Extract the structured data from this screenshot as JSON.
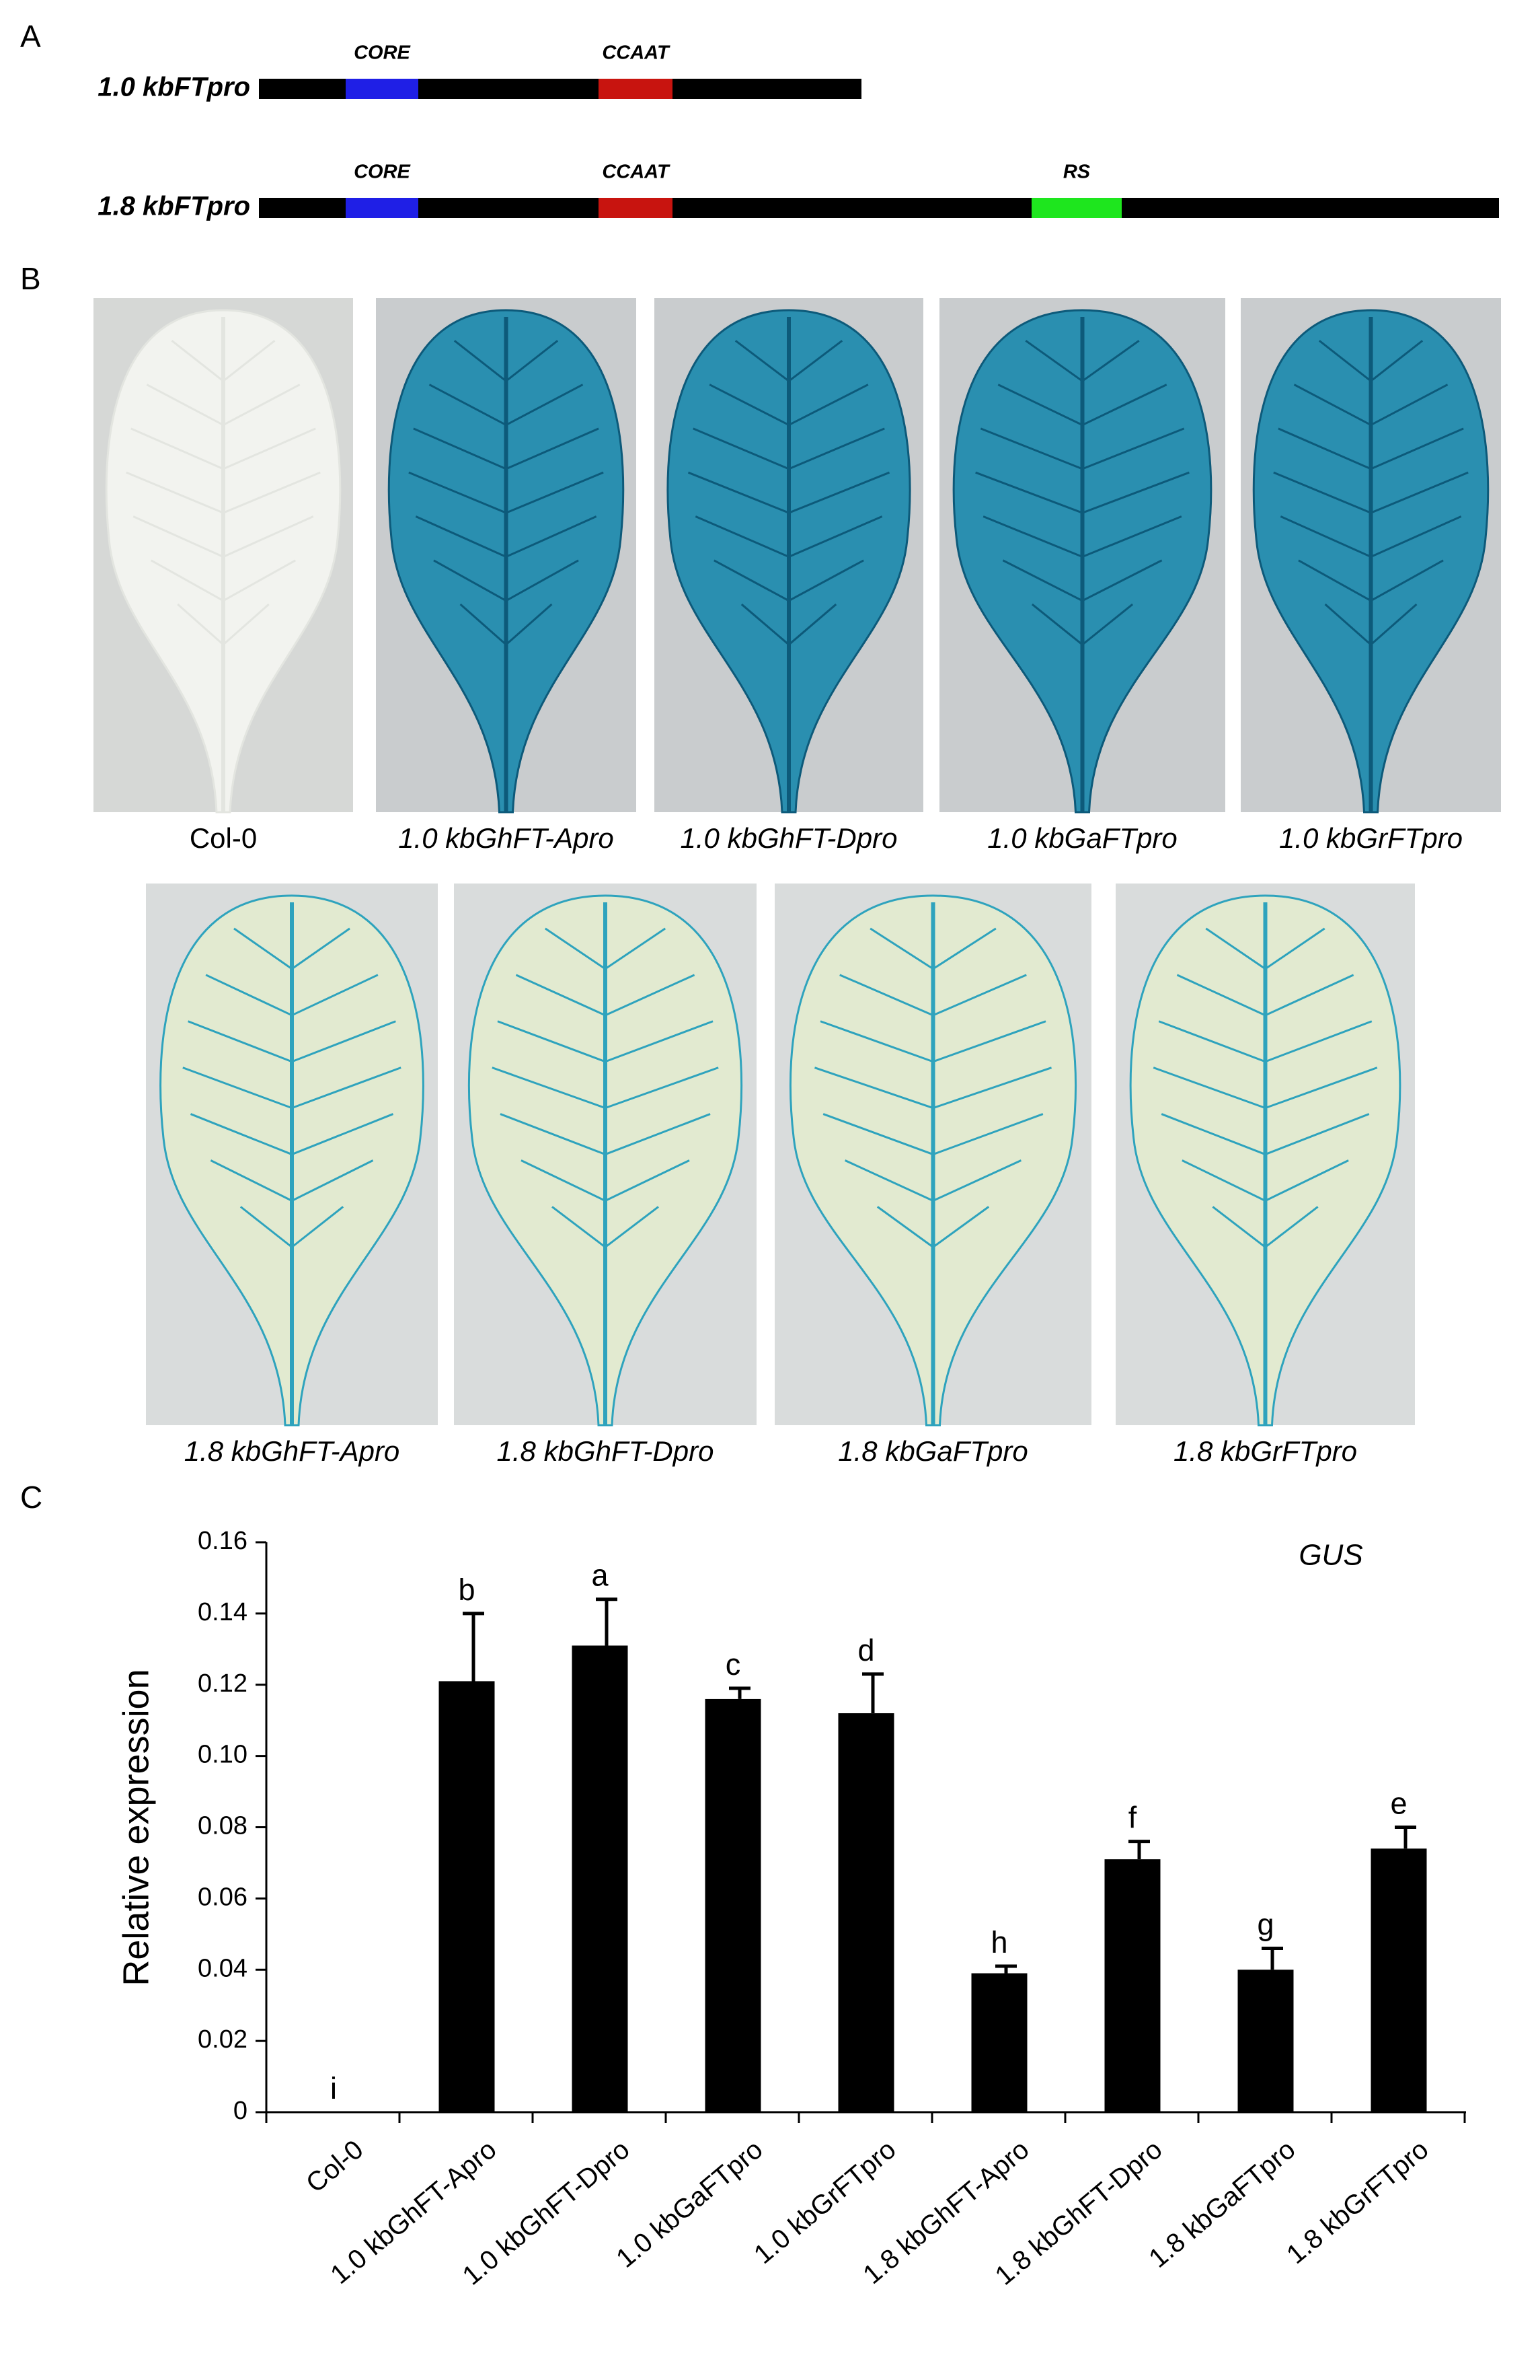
{
  "panel_a": {
    "label": "A",
    "constructs": [
      {
        "name": "1.0 kbFTpro",
        "elements": [
          {
            "label": "CORE",
            "color": "#1f1fe6"
          },
          {
            "label": "CCAAT",
            "color": "#c8140f"
          }
        ]
      },
      {
        "name": "1.8 kbFTpro",
        "elements": [
          {
            "label": "CORE",
            "color": "#1f1fe6"
          },
          {
            "label": "CCAAT",
            "color": "#c8140f"
          },
          {
            "label": "RS",
            "color": "#1ee61e"
          }
        ]
      }
    ]
  },
  "panel_b": {
    "label": "B",
    "images": [
      "Col-0",
      "1.0 kbGhFT-Apro",
      "1.0 kbGhFT-Dpro",
      "1.0 kbGaFTpro",
      "1.0 kbGrFTpro",
      "1.8 kbGhFT-Apro",
      "1.8 kbGhFT-Dpro",
      "1.8 kbGaFTpro",
      "1.8 kbGrFTpro"
    ]
  },
  "chart_data": {
    "type": "bar",
    "panel_label": "C",
    "annotation": "GUS",
    "y_label": "Relative expression",
    "categories": [
      "Col-0",
      "1.0 kbGhFT-Apro",
      "1.0 kbGhFT-Dpro",
      "1.0 kbGaFTpro",
      "1.0 kbGrFTpro",
      "1.8 kbGhFT-Apro",
      "1.8 kbGhFT-Dpro",
      "1.8 kbGaFTpro",
      "1.8 kbGrFTpro"
    ],
    "values": [
      0,
      0.121,
      0.131,
      0.116,
      0.112,
      0.039,
      0.071,
      0.04,
      0.074
    ],
    "errors": [
      0,
      0.019,
      0.013,
      0.003,
      0.011,
      0.002,
      0.005,
      0.006,
      0.006
    ],
    "letters": [
      "i",
      "b",
      "a",
      "c",
      "d",
      "h",
      "f",
      "g",
      "e"
    ],
    "color": "#000000",
    "ylim": [
      0,
      0.16
    ],
    "yticks": [
      0,
      0.02,
      0.04,
      0.06,
      0.08,
      {
        "value": 0.1,
        "label": "0.10"
      },
      0.12,
      0.14,
      0.16
    ]
  }
}
